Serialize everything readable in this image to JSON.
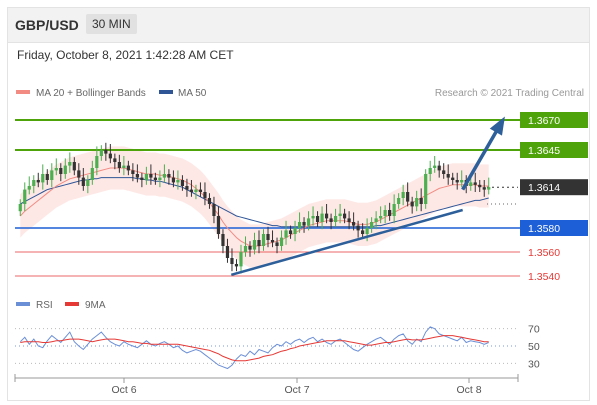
{
  "header": {
    "symbol": "GBP/USD",
    "timeframe": "30 MIN"
  },
  "datetime": "Friday, October 8, 2021 1:42:28 AM CET",
  "legend": {
    "ma20": "MA 20 + Bollinger Bands",
    "ma50": "MA 50",
    "credit": "Research © 2021 Trading Central"
  },
  "rsi_legend": {
    "rsi": "RSI",
    "ma": "9MA"
  },
  "colors": {
    "resistance": "#4fa30a",
    "support_blue": "#1c5fd6",
    "support_red": "#e53935",
    "current": "#333333",
    "bullish": "#4caf50",
    "bearish": "#333333",
    "ma20": "#f28b82",
    "ma50": "#2f5597",
    "band": "#fcd9d6",
    "rsi": "#6b8fd6",
    "rsi_ma": "#e53935",
    "arrow": "#2d5f9a"
  },
  "chart_data": [
    {
      "type": "candlestick",
      "title": "GBP/USD",
      "x_ticks": [
        "Oct 6",
        "Oct 7",
        "Oct 8"
      ],
      "ylim": [
        1.353,
        1.368
      ],
      "levels": [
        {
          "value": 1.367,
          "label": "1.3670",
          "kind": "resistance"
        },
        {
          "value": 1.3645,
          "label": "1.3645",
          "kind": "resistance"
        },
        {
          "value": 1.3614,
          "label": "1.3614",
          "kind": "current"
        },
        {
          "value": 1.358,
          "label": "1.3580",
          "kind": "support_blue"
        },
        {
          "value": 1.356,
          "label": "1.3560",
          "kind": "support_red"
        },
        {
          "value": 1.354,
          "label": "1.3540",
          "kind": "support_red"
        }
      ],
      "close": [
        1.36,
        1.3612,
        1.3615,
        1.362,
        1.3618,
        1.3625,
        1.362,
        1.3628,
        1.363,
        1.3625,
        1.3632,
        1.3635,
        1.3628,
        1.3622,
        1.3615,
        1.362,
        1.363,
        1.364,
        1.3645,
        1.3642,
        1.3638,
        1.3635,
        1.363,
        1.3632,
        1.3628,
        1.3625,
        1.3622,
        1.362,
        1.3625,
        1.3622,
        1.362,
        1.3622,
        1.3625,
        1.3622,
        1.3618,
        1.362,
        1.3615,
        1.3612,
        1.361,
        1.3612,
        1.361,
        1.3605,
        1.36,
        1.359,
        1.3575,
        1.3565,
        1.3555,
        1.355,
        1.3548,
        1.356,
        1.3565,
        1.3562,
        1.357,
        1.3565,
        1.3575,
        1.357,
        1.3568,
        1.3565,
        1.3572,
        1.3578,
        1.3575,
        1.358,
        1.3585,
        1.3582,
        1.3588,
        1.359,
        1.3585,
        1.3592,
        1.3588,
        1.3585,
        1.359,
        1.3592,
        1.3588,
        1.3585,
        1.3582,
        1.3578,
        1.3575,
        1.358,
        1.3585,
        1.3588,
        1.359,
        1.3595,
        1.359,
        1.36,
        1.3605,
        1.361,
        1.3602,
        1.3598,
        1.3605,
        1.36,
        1.3625,
        1.363,
        1.3632,
        1.3628,
        1.3625,
        1.3622,
        1.362,
        1.3618,
        1.362,
        1.3615,
        1.3618,
        1.3616,
        1.3614,
        1.3612,
        1.3614
      ],
      "ma20": [
        1.359,
        1.3594,
        1.3597,
        1.36,
        1.3603,
        1.3606,
        1.3609,
        1.3612,
        1.3615,
        1.3617,
        1.3619,
        1.3621,
        1.3622,
        1.3623,
        1.3624,
        1.3625,
        1.3626,
        1.3627,
        1.3628,
        1.3629,
        1.363,
        1.363,
        1.363,
        1.363,
        1.3629,
        1.3628,
        1.3627,
        1.3626,
        1.3625,
        1.3625,
        1.3625,
        1.3624,
        1.3624,
        1.3623,
        1.3622,
        1.3621,
        1.362,
        1.3618,
        1.3616,
        1.3613,
        1.361,
        1.3606,
        1.3601,
        1.3596,
        1.3591,
        1.3585,
        1.358,
        1.3576,
        1.3572,
        1.3569,
        1.3567,
        1.3565,
        1.3565,
        1.3565,
        1.3566,
        1.3567,
        1.3568,
        1.3569,
        1.357,
        1.3572,
        1.3574,
        1.3576,
        1.3578,
        1.358,
        1.3582,
        1.3583,
        1.3584,
        1.3585,
        1.3586,
        1.3586,
        1.3586,
        1.3586,
        1.3586,
        1.3585,
        1.3584,
        1.3583,
        1.3583,
        1.3583,
        1.3584,
        1.3585,
        1.3587,
        1.3589,
        1.3591,
        1.3593,
        1.3595,
        1.3597,
        1.3599,
        1.3601,
        1.3603,
        1.3605,
        1.3607,
        1.3609,
        1.3611,
        1.3613,
        1.3614,
        1.3615,
        1.3616,
        1.3616,
        1.3616,
        1.3616,
        1.3616,
        1.3616,
        1.3615,
        1.3615,
        1.3615
      ],
      "ma50": [
        1.36,
        1.3602,
        1.3604,
        1.3606,
        1.3608,
        1.361,
        1.3612,
        1.3613,
        1.3614,
        1.3615,
        1.3616,
        1.3617,
        1.3618,
        1.3619,
        1.362,
        1.362,
        1.3621,
        1.3621,
        1.3622,
        1.3622,
        1.3622,
        1.3622,
        1.3622,
        1.3622,
        1.3622,
        1.3622,
        1.3621,
        1.3621,
        1.362,
        1.362,
        1.3619,
        1.3619,
        1.3618,
        1.3617,
        1.3616,
        1.3615,
        1.3614,
        1.3612,
        1.361,
        1.3608,
        1.3606,
        1.3604,
        1.3602,
        1.36,
        1.3598,
        1.3596,
        1.3594,
        1.3592,
        1.359,
        1.3589,
        1.3588,
        1.3587,
        1.3586,
        1.3585,
        1.3584,
        1.3583,
        1.3582,
        1.3582,
        1.3581,
        1.3581,
        1.3581,
        1.3581,
        1.3581,
        1.3581,
        1.3581,
        1.3581,
        1.3581,
        1.3581,
        1.3581,
        1.3581,
        1.3581,
        1.3581,
        1.3581,
        1.3581,
        1.3581,
        1.3581,
        1.3581,
        1.3581,
        1.3581,
        1.3582,
        1.3582,
        1.3583,
        1.3584,
        1.3585,
        1.3586,
        1.3587,
        1.3588,
        1.3589,
        1.359,
        1.3591,
        1.3592,
        1.3593,
        1.3594,
        1.3595,
        1.3596,
        1.3597,
        1.3598,
        1.3599,
        1.36,
        1.3601,
        1.3602,
        1.3603,
        1.3603,
        1.3604,
        1.3605
      ],
      "trendline": [
        [
          0.43,
          1.3541
        ],
        [
          0.89,
          1.3595
        ]
      ],
      "projection_arrow": [
        [
          0.89,
          1.3612
        ],
        [
          0.97,
          1.367
        ]
      ]
    },
    {
      "type": "line",
      "title": "RSI",
      "y_ticks": [
        70,
        50,
        30
      ],
      "ylim": [
        20,
        80
      ],
      "series": [
        {
          "name": "RSI",
          "values": [
            55,
            60,
            52,
            58,
            50,
            48,
            56,
            62,
            58,
            54,
            60,
            66,
            55,
            50,
            46,
            52,
            58,
            62,
            66,
            60,
            55,
            52,
            50,
            55,
            52,
            50,
            48,
            52,
            56,
            52,
            50,
            53,
            55,
            52,
            48,
            50,
            45,
            42,
            44,
            46,
            44,
            40,
            36,
            32,
            28,
            26,
            24,
            28,
            35,
            40,
            38,
            44,
            40,
            46,
            44,
            42,
            48,
            52,
            50,
            55,
            52,
            56,
            58,
            54,
            58,
            60,
            55,
            58,
            54,
            52,
            56,
            58,
            54,
            50,
            46,
            44,
            48,
            52,
            55,
            58,
            60,
            56,
            52,
            58,
            62,
            64,
            56,
            52,
            58,
            55,
            66,
            72,
            70,
            64,
            62,
            60,
            58,
            56,
            60,
            54,
            56,
            55,
            54,
            52,
            54
          ]
        },
        {
          "name": "9MA",
          "values": [
            54,
            55,
            55,
            55,
            55,
            54,
            54,
            55,
            56,
            56,
            57,
            58,
            58,
            58,
            57,
            56,
            55,
            56,
            57,
            58,
            58,
            58,
            57,
            56,
            55,
            55,
            54,
            53,
            53,
            52,
            52,
            52,
            52,
            52,
            52,
            52,
            51,
            50,
            49,
            48,
            47,
            46,
            45,
            43,
            41,
            38,
            36,
            34,
            33,
            33,
            33,
            34,
            35,
            36,
            38,
            39,
            40,
            42,
            44,
            45,
            47,
            48,
            50,
            51,
            52,
            53,
            54,
            55,
            56,
            56,
            56,
            56,
            56,
            55,
            54,
            53,
            52,
            51,
            51,
            52,
            53,
            54,
            54,
            55,
            56,
            57,
            58,
            57,
            57,
            57,
            58,
            59,
            60,
            61,
            62,
            62,
            62,
            61,
            60,
            59,
            58,
            57,
            56,
            55,
            55
          ]
        }
      ]
    }
  ]
}
